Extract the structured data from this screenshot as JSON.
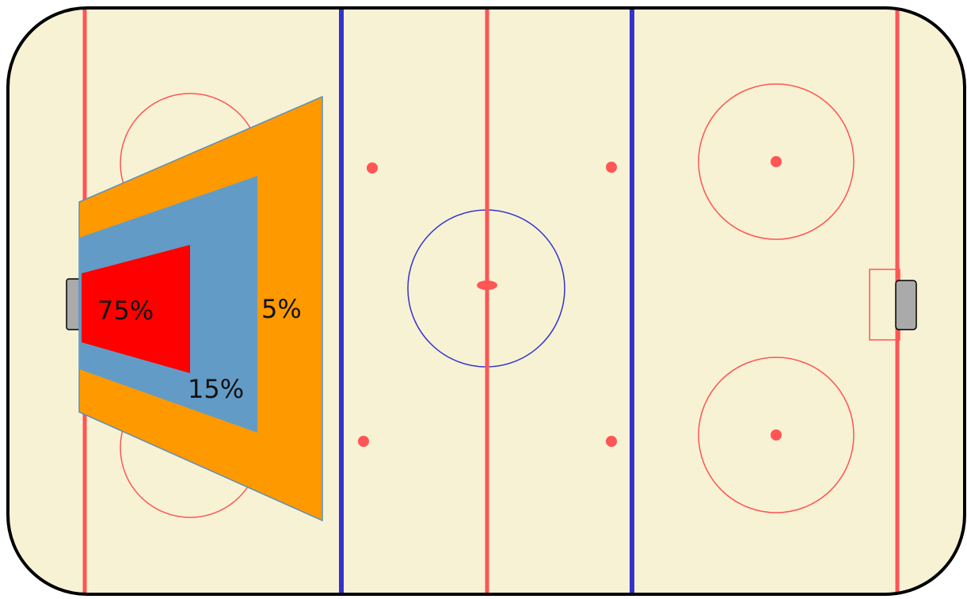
{
  "zones": [
    {
      "label": "75%"
    },
    {
      "label": "15%"
    },
    {
      "label": "5%"
    }
  ]
}
